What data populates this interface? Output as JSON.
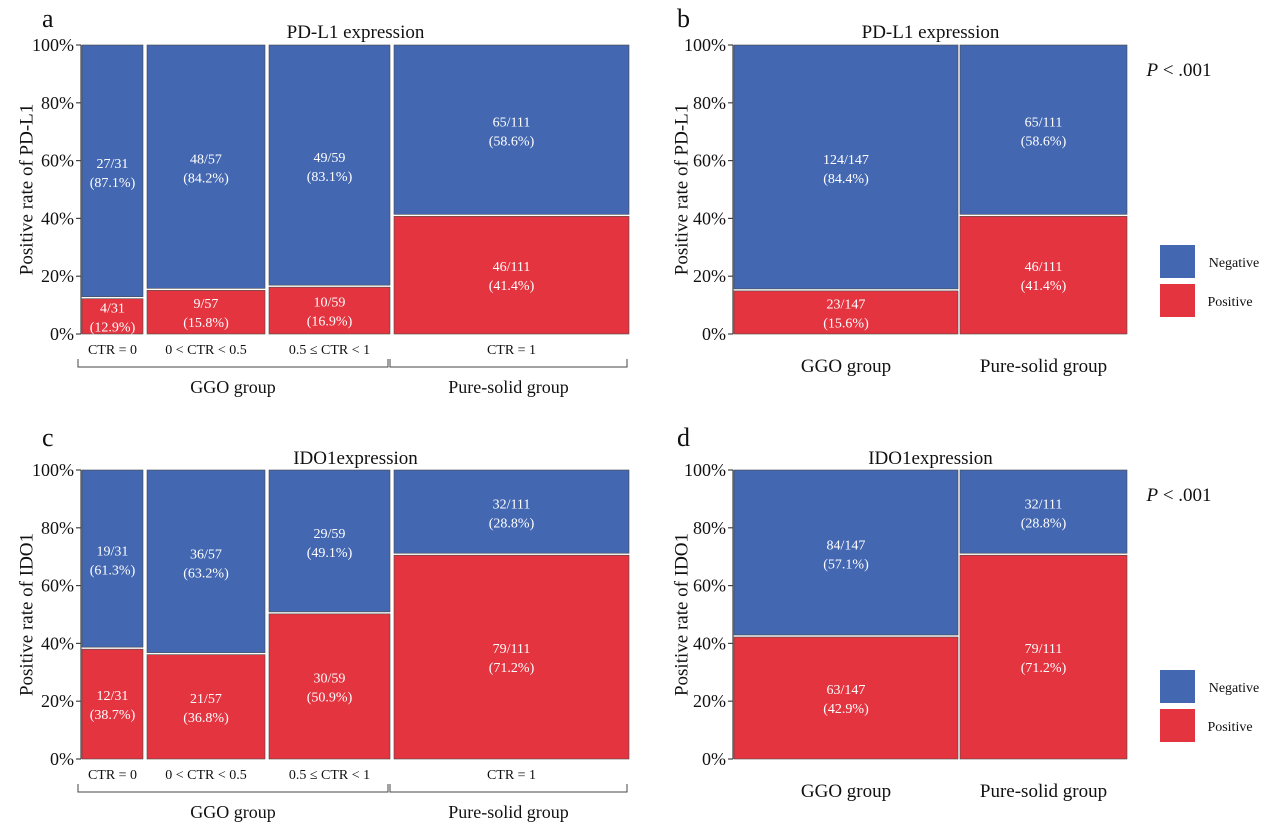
{
  "colors": {
    "negative": "#4367B0",
    "positive": "#E43440",
    "axis": "#444444",
    "border": "#ffffff"
  },
  "legend_labels": {
    "negative": "Negative",
    "positive": "Positive"
  },
  "chart_data": [
    {
      "panel": "a",
      "type": "mosaic",
      "title": "PD-L1 expression",
      "ylabel": "Positive rate of PD-L1",
      "y_ticks": [
        "0%",
        "20%",
        "40%",
        "60%",
        "80%",
        "100%"
      ],
      "ylim": [
        0,
        100
      ],
      "groups": [
        {
          "label": "GGO group",
          "members": [
            0,
            1,
            2
          ]
        },
        {
          "label": "Pure-solid group",
          "members": [
            3
          ]
        }
      ],
      "categories": [
        {
          "label": "CTR = 0",
          "total": 31,
          "positive": {
            "pct": 12.9,
            "text": "4/31",
            "pct_text": "(12.9%)"
          },
          "negative": {
            "pct": 87.1,
            "text": "27/31",
            "pct_text": "(87.1%)"
          }
        },
        {
          "label": "0 < CTR < 0.5",
          "total": 57,
          "positive": {
            "pct": 15.8,
            "text": "9/57",
            "pct_text": "(15.8%)"
          },
          "negative": {
            "pct": 84.2,
            "text": "48/57",
            "pct_text": "(84.2%)"
          }
        },
        {
          "label": "0.5 ≤ CTR < 1",
          "total": 59,
          "positive": {
            "pct": 16.9,
            "text": "10/59",
            "pct_text": "(16.9%)"
          },
          "negative": {
            "pct": 83.1,
            "text": "49/59",
            "pct_text": "(83.1%)"
          }
        },
        {
          "label": "CTR = 1",
          "total": 111,
          "positive": {
            "pct": 41.4,
            "text": "46/111",
            "pct_text": "(41.4%)"
          },
          "negative": {
            "pct": 58.6,
            "text": "65/111",
            "pct_text": "(58.6%)"
          }
        }
      ]
    },
    {
      "panel": "b",
      "type": "mosaic",
      "title": "PD-L1 expression",
      "ylabel": "Positive rate of PD-L1",
      "y_ticks": [
        "0%",
        "20%",
        "40%",
        "60%",
        "80%",
        "100%"
      ],
      "ylim": [
        0,
        100
      ],
      "p_prefix": "P",
      "p_text": " < .001",
      "legend": true,
      "categories": [
        {
          "label": "GGO group",
          "total": 147,
          "positive": {
            "pct": 15.6,
            "text": "23/147",
            "pct_text": "(15.6%)"
          },
          "negative": {
            "pct": 84.4,
            "text": "124/147",
            "pct_text": "(84.4%)"
          }
        },
        {
          "label": "Pure-solid group",
          "total": 111,
          "positive": {
            "pct": 41.4,
            "text": "46/111",
            "pct_text": "(41.4%)"
          },
          "negative": {
            "pct": 58.6,
            "text": "65/111",
            "pct_text": "(58.6%)"
          }
        }
      ]
    },
    {
      "panel": "c",
      "type": "mosaic",
      "title": "IDO1expression",
      "ylabel": "Positive rate of IDO1",
      "y_ticks": [
        "0%",
        "20%",
        "40%",
        "60%",
        "80%",
        "100%"
      ],
      "ylim": [
        0,
        100
      ],
      "groups": [
        {
          "label": "GGO group",
          "members": [
            0,
            1,
            2
          ]
        },
        {
          "label": "Pure-solid group",
          "members": [
            3
          ]
        }
      ],
      "categories": [
        {
          "label": "CTR = 0",
          "total": 31,
          "positive": {
            "pct": 38.7,
            "text": "12/31",
            "pct_text": "(38.7%)"
          },
          "negative": {
            "pct": 61.3,
            "text": "19/31",
            "pct_text": "(61.3%)"
          }
        },
        {
          "label": "0 < CTR < 0.5",
          "total": 57,
          "positive": {
            "pct": 36.8,
            "text": "21/57",
            "pct_text": "(36.8%)"
          },
          "negative": {
            "pct": 63.2,
            "text": "36/57",
            "pct_text": "(63.2%)"
          }
        },
        {
          "label": "0.5 ≤ CTR < 1",
          "total": 59,
          "positive": {
            "pct": 50.9,
            "text": "30/59",
            "pct_text": "(50.9%)"
          },
          "negative": {
            "pct": 49.1,
            "text": "29/59",
            "pct_text": "(49.1%)"
          }
        },
        {
          "label": "CTR = 1",
          "total": 111,
          "positive": {
            "pct": 71.2,
            "text": "79/111",
            "pct_text": "(71.2%)"
          },
          "negative": {
            "pct": 28.8,
            "text": "32/111",
            "pct_text": "(28.8%)"
          }
        }
      ]
    },
    {
      "panel": "d",
      "type": "mosaic",
      "title": "IDO1expression",
      "ylabel": "Positive rate of IDO1",
      "y_ticks": [
        "0%",
        "20%",
        "40%",
        "60%",
        "80%",
        "100%"
      ],
      "ylim": [
        0,
        100
      ],
      "p_prefix": "P",
      "p_text": " < .001",
      "legend": true,
      "categories": [
        {
          "label": "GGO group",
          "total": 147,
          "positive": {
            "pct": 42.9,
            "text": "63/147",
            "pct_text": "(42.9%)"
          },
          "negative": {
            "pct": 57.1,
            "text": "84/147",
            "pct_text": "(57.1%)"
          }
        },
        {
          "label": "Pure-solid group",
          "total": 111,
          "positive": {
            "pct": 71.2,
            "text": "79/111",
            "pct_text": "(71.2%)"
          },
          "negative": {
            "pct": 28.8,
            "text": "32/111",
            "pct_text": "(28.8%)"
          }
        }
      ]
    }
  ]
}
